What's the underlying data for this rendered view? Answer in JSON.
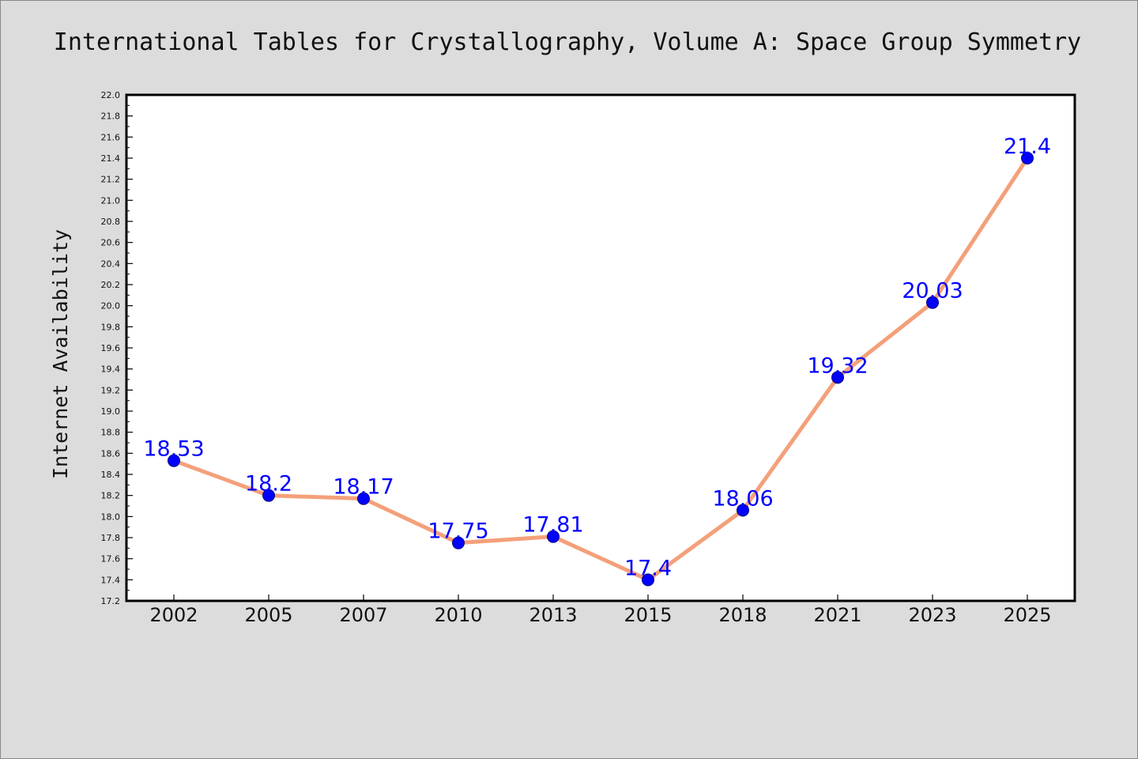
{
  "chart_data": {
    "type": "line",
    "title": "International Tables for Crystallography, Volume A: Space Group Symmetry",
    "xlabel": "",
    "ylabel": "Internet Availability",
    "categories": [
      "2002",
      "2005",
      "2007",
      "2010",
      "2013",
      "2015",
      "2018",
      "2021",
      "2023",
      "2025"
    ],
    "series": [
      {
        "values": [
          18.53,
          18.2,
          18.17,
          17.75,
          17.81,
          17.4,
          18.06,
          19.32,
          20.03,
          21.4
        ],
        "labels": [
          "18.53",
          "18.2",
          "18.17",
          "17.75",
          "17.81",
          "17.4",
          "18.06",
          "19.32",
          "20.03",
          "21.4"
        ]
      }
    ],
    "ylim": [
      17.2,
      22.0
    ],
    "yticks": [
      "17.2",
      "17.4",
      "17.6",
      "17.8",
      "18.0",
      "18.2",
      "18.4",
      "18.6",
      "18.8",
      "19.0",
      "19.2",
      "19.4",
      "19.6",
      "19.8",
      "20.0",
      "20.2",
      "20.4",
      "20.6",
      "20.8",
      "21.0",
      "21.2",
      "21.4",
      "21.6",
      "21.8",
      "22.0"
    ],
    "grid": false,
    "legend": "none",
    "colors": {
      "line": "#f4a07a",
      "marker": "#0000ff",
      "marker_edge": "#000080",
      "data_label": "#0000ff",
      "background": "#dcdcdc",
      "plot_background": "#ffffff"
    }
  }
}
